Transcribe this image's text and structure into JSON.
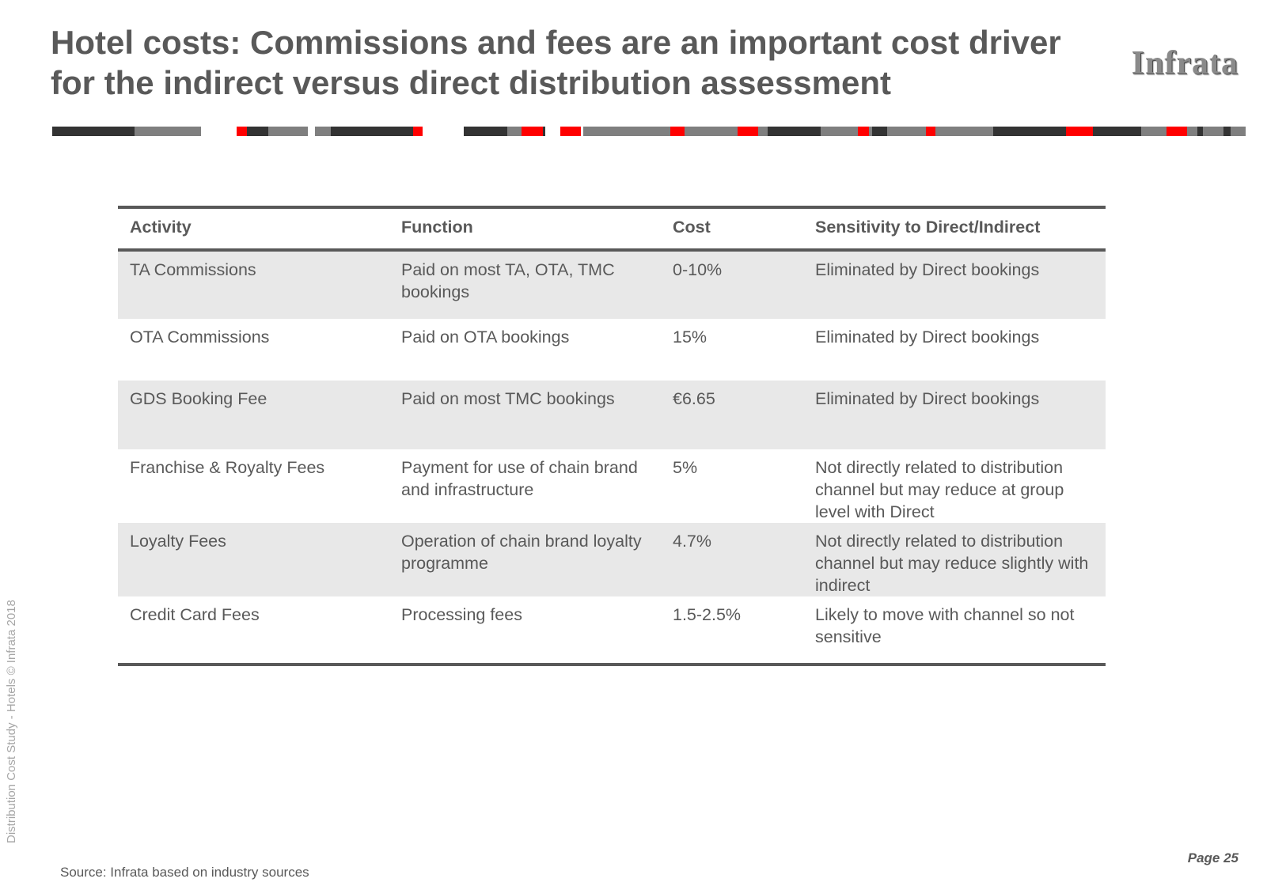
{
  "title": {
    "line1": "Hotel costs:  Commissions and fees are an important cost driver",
    "line2": "for the indirect versus direct distribution assessment"
  },
  "logo": {
    "text": "Infrata"
  },
  "colors": {
    "text": "#595959",
    "accent_red": "#ff0000",
    "bar_dark": "#333333",
    "bar_grey": "#7f7f7f",
    "row_shade": "#e8e8e8"
  },
  "table": {
    "headers": [
      "Activity",
      "Function",
      "Cost",
      "Sensitivity to Direct/Indirect"
    ],
    "rows": [
      {
        "activity": "TA Commissions",
        "function": "Paid on most TA, OTA, TMC bookings",
        "cost": "0-10%",
        "sensitivity": "Eliminated by Direct bookings"
      },
      {
        "activity": "OTA Commissions",
        "function": "Paid on OTA bookings",
        "cost": "15%",
        "sensitivity": "Eliminated by Direct bookings"
      },
      {
        "activity": "GDS Booking Fee",
        "function": "Paid on most TMC bookings",
        "cost": "€6.65",
        "sensitivity": "Eliminated by Direct bookings"
      },
      {
        "activity": "Franchise & Royalty Fees",
        "function": "Payment for use of chain brand and infrastructure",
        "cost": "5%",
        "sensitivity": "Not directly related to distribution channel but may reduce at group level with Direct"
      },
      {
        "activity": "Loyalty Fees",
        "function": "Operation of chain brand loyalty programme",
        "cost": "4.7%",
        "sensitivity": "Not directly related to distribution channel but may reduce slightly with indirect"
      },
      {
        "activity": "Credit Card Fees",
        "function": "Processing fees",
        "cost": "1.5-2.5%",
        "sensitivity": "Likely to move with channel so not sensitive"
      }
    ]
  },
  "side_label": "Distribution Cost Study -  Hotels © Infrata 2018",
  "page_number": "Page 25",
  "source": "Source: Infrata based on industry sources"
}
